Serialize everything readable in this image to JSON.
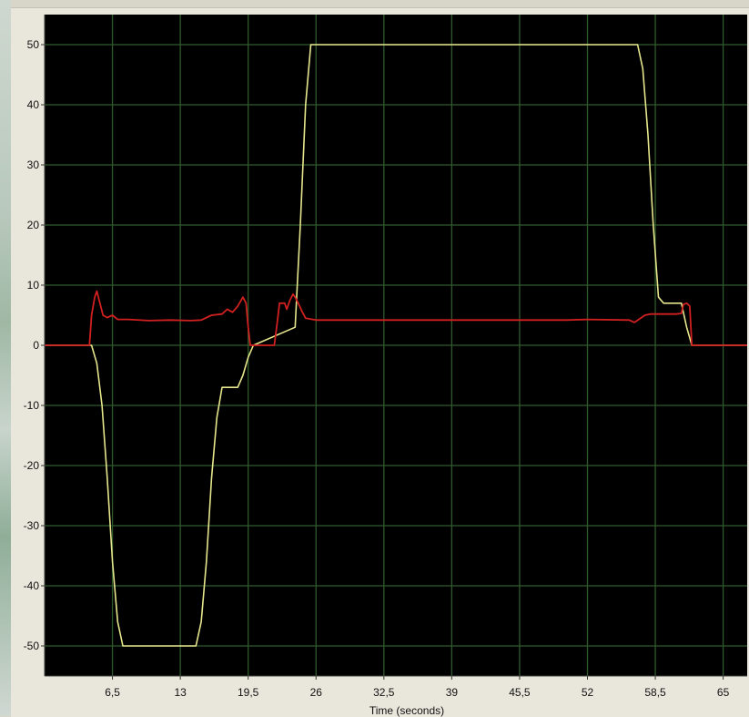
{
  "chart_data": {
    "type": "line",
    "title": "",
    "xlabel": "Time (seconds)",
    "ylabel": "",
    "xlim": [
      0,
      67.3
    ],
    "ylim": [
      -55,
      55
    ],
    "x_ticks": [
      6.5,
      13,
      19.5,
      26,
      32.5,
      39,
      45.5,
      52,
      58.5,
      65
    ],
    "x_tick_labels": [
      "6,5",
      "13",
      "19,5",
      "26",
      "32,5",
      "39",
      "45,5",
      "52",
      "58,5",
      "65"
    ],
    "y_ticks": [
      -50,
      -40,
      -30,
      -20,
      -10,
      0,
      10,
      20,
      30,
      40,
      50
    ],
    "y_tick_labels": [
      "-50",
      "-40",
      "-30",
      "-20",
      "-10",
      "0",
      "10",
      "20",
      "30",
      "40",
      "50"
    ],
    "grid": true,
    "background_color": "#000000",
    "grid_color": "#2f5a2c",
    "series": [
      {
        "color": "#e6e68c",
        "x": [
          0,
          4.5,
          5.0,
          5.5,
          6.0,
          6.5,
          7.0,
          7.5,
          8.0,
          14.5,
          15.0,
          15.5,
          16.0,
          16.5,
          17.0,
          17.5,
          18.5,
          19.0,
          19.5,
          20.0,
          24.0,
          24.5,
          25.0,
          25.5,
          56.8,
          57.3,
          57.8,
          58.3,
          58.8,
          59.3,
          61.0,
          61.5,
          62.0,
          67.3
        ],
        "y": [
          0,
          0,
          -3,
          -10,
          -22,
          -36,
          -46,
          -50,
          -50,
          -50,
          -46,
          -36,
          -22,
          -12,
          -7,
          -7,
          -7,
          -5,
          -2,
          0,
          3,
          20,
          40,
          50,
          50,
          46,
          35,
          20,
          8,
          7,
          7,
          3,
          0,
          0
        ]
      },
      {
        "color": "#d02020",
        "x": [
          0,
          4.3,
          4.5,
          4.8,
          5.0,
          5.3,
          5.6,
          6.0,
          6.5,
          7.0,
          8.0,
          10.0,
          12.0,
          14.0,
          15.0,
          16.0,
          17.0,
          17.5,
          18.0,
          18.5,
          19.0,
          19.3,
          19.5,
          19.7,
          20.0,
          22.0,
          22.3,
          22.5,
          23.0,
          23.2,
          23.5,
          23.8,
          24.0,
          24.3,
          24.7,
          25.0,
          26.0,
          30.0,
          35.0,
          40.0,
          45.0,
          50.0,
          52.0,
          56.0,
          56.5,
          57.0,
          57.5,
          58.0,
          59.0,
          60.0,
          60.5,
          61.0,
          61.2,
          61.5,
          61.8,
          62.0,
          67.3
        ],
        "y": [
          0,
          0,
          5,
          8,
          9,
          7,
          5,
          4.6,
          5,
          4.3,
          4.3,
          4.1,
          4.2,
          4.1,
          4.2,
          5.0,
          5.2,
          6.0,
          5.5,
          6.5,
          8.0,
          7.0,
          3.0,
          0,
          0,
          0,
          4,
          7,
          7,
          6,
          7.5,
          8.5,
          8,
          7,
          5.5,
          4.5,
          4.2,
          4.2,
          4.2,
          4.2,
          4.2,
          4.2,
          4.3,
          4.2,
          3.8,
          4.4,
          5.0,
          5.2,
          5.2,
          5.2,
          5.2,
          5.3,
          6.8,
          7.0,
          6.5,
          0,
          0
        ]
      }
    ]
  }
}
